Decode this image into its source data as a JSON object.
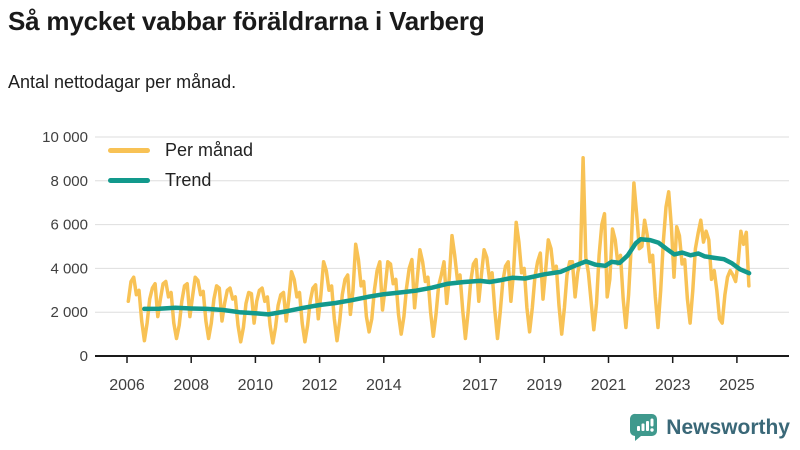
{
  "header": {
    "title": "Så mycket vabbar föräldrarna i Varberg",
    "subtitle": "Antal nettodagar per månad."
  },
  "footer": {
    "brand": "Newsworthy",
    "brand_text_color": "#3a6878",
    "brand_icon_color": "#3f998d"
  },
  "colors": {
    "per_month_line": "#f8c255",
    "trend_line": "#12998c",
    "grid": "#dedede",
    "axis": "#1a1a1a"
  },
  "chart_data": {
    "type": "line",
    "title": "Så mycket vabbar föräldrarna i Varberg",
    "ylabel": "Antal nettodagar per månad",
    "ylim": [
      0,
      10000
    ],
    "yticks": [
      0,
      2000,
      4000,
      6000,
      8000,
      10000
    ],
    "ytick_labels": [
      "0",
      "2 000",
      "4 000",
      "6 000",
      "8 000",
      "10 000"
    ],
    "xticks": [
      2006,
      2008,
      2010,
      2012,
      2014,
      2017,
      2019,
      2021,
      2023,
      2025
    ],
    "xtick_labels": [
      "2006",
      "2008",
      "2010",
      "2012",
      "2014",
      "2017",
      "2019",
      "2021",
      "2023",
      "2025"
    ],
    "grid": "horizontal",
    "legend_position": "top-left",
    "series": [
      {
        "name": "Per månad",
        "color": "#f8c255",
        "start": "2006-01",
        "end": "2025-05",
        "monthly_values_by_year": {
          "2006": [
            2500,
            3400,
            3600,
            2800,
            3000,
            1600,
            700,
            1500,
            2600,
            3100,
            3300,
            1800
          ],
          "2007": [
            2600,
            3300,
            3400,
            2700,
            2900,
            1500,
            800,
            1400,
            2500,
            3200,
            3300,
            1800
          ],
          "2008": [
            2700,
            3600,
            3450,
            2800,
            2950,
            1600,
            800,
            1500,
            2600,
            3200,
            3100,
            1600
          ],
          "2009": [
            2400,
            3000,
            3100,
            2600,
            2700,
            1400,
            650,
            1300,
            2400,
            2900,
            2850,
            1500
          ],
          "2010": [
            2500,
            3000,
            3100,
            2500,
            2700,
            1400,
            600,
            1300,
            2300,
            2800,
            2900,
            1600
          ],
          "2011": [
            2600,
            3850,
            3500,
            2700,
            2900,
            1500,
            650,
            1400,
            2500,
            3100,
            3250,
            1700
          ],
          "2012": [
            2800,
            4300,
            3900,
            3000,
            3200,
            1700,
            700,
            1600,
            2800,
            3500,
            3700,
            1900
          ],
          "2013": [
            3000,
            5100,
            4400,
            3200,
            3400,
            1800,
            1100,
            1700,
            3000,
            3900,
            4300,
            2100
          ],
          "2014": [
            3100,
            4300,
            4200,
            3300,
            3500,
            1900,
            1000,
            1800,
            3100,
            4000,
            4400,
            2200
          ],
          "2015": [
            3500,
            4850,
            4300,
            3400,
            3600,
            2000,
            900,
            1900,
            3200,
            3700,
            4300,
            2400
          ],
          "2016": [
            3600,
            5500,
            4600,
            3500,
            3700,
            2100,
            800,
            2000,
            3400,
            4200,
            4400,
            2500
          ],
          "2017": [
            3700,
            4850,
            4500,
            3500,
            3800,
            2100,
            800,
            2000,
            3400,
            4100,
            4300,
            2500
          ],
          "2018": [
            3800,
            6100,
            5200,
            3800,
            4000,
            2200,
            1100,
            2200,
            3600,
            4300,
            4700,
            2600
          ],
          "2019": [
            3900,
            5300,
            4900,
            3800,
            4100,
            2300,
            1000,
            2200,
            3700,
            4300,
            4300,
            2700
          ],
          "2020": [
            3800,
            4400,
            9050,
            4500,
            3800,
            2500,
            1200,
            2400,
            4600,
            6000,
            6500,
            2700
          ],
          "2021": [
            3500,
            5800,
            5300,
            4200,
            4600,
            2600,
            1300,
            2800,
            5000,
            7900,
            6500,
            4900
          ],
          "2022": [
            5000,
            6200,
            5500,
            4300,
            4600,
            2700,
            1300,
            3000,
            5200,
            6800,
            7500,
            5900
          ],
          "2023": [
            3600,
            5900,
            5500,
            4200,
            4400,
            2600,
            1500,
            3000,
            4900,
            5600,
            6200,
            5200
          ],
          "2024": [
            5700,
            5300,
            3500,
            3900,
            3000,
            1700,
            1500,
            2800,
            3600,
            3900,
            3700,
            3400
          ],
          "2025": [
            4300,
            5700,
            5100,
            5650,
            3200
          ]
        }
      },
      {
        "name": "Trend",
        "color": "#12998c",
        "anchors": [
          [
            2006.54,
            2150
          ],
          [
            2007.0,
            2160
          ],
          [
            2007.5,
            2200
          ],
          [
            2008.0,
            2170
          ],
          [
            2008.5,
            2150
          ],
          [
            2009.0,
            2100
          ],
          [
            2009.5,
            2000
          ],
          [
            2010.0,
            1950
          ],
          [
            2010.4,
            1900
          ],
          [
            2011.0,
            2050
          ],
          [
            2011.5,
            2200
          ],
          [
            2012.0,
            2330
          ],
          [
            2012.5,
            2420
          ],
          [
            2013.0,
            2550
          ],
          [
            2013.5,
            2700
          ],
          [
            2014.0,
            2820
          ],
          [
            2014.5,
            2900
          ],
          [
            2015.0,
            2980
          ],
          [
            2015.5,
            3120
          ],
          [
            2016.0,
            3300
          ],
          [
            2016.5,
            3380
          ],
          [
            2017.0,
            3430
          ],
          [
            2017.3,
            3380
          ],
          [
            2017.6,
            3450
          ],
          [
            2018.0,
            3570
          ],
          [
            2018.4,
            3540
          ],
          [
            2019.0,
            3730
          ],
          [
            2019.5,
            3840
          ],
          [
            2020.0,
            4150
          ],
          [
            2020.3,
            4320
          ],
          [
            2020.6,
            4170
          ],
          [
            2020.9,
            4120
          ],
          [
            2021.1,
            4300
          ],
          [
            2021.35,
            4250
          ],
          [
            2021.6,
            4600
          ],
          [
            2021.85,
            5150
          ],
          [
            2022.0,
            5330
          ],
          [
            2022.3,
            5290
          ],
          [
            2022.55,
            5180
          ],
          [
            2022.8,
            4900
          ],
          [
            2023.05,
            4640
          ],
          [
            2023.3,
            4720
          ],
          [
            2023.55,
            4600
          ],
          [
            2023.8,
            4680
          ],
          [
            2024.0,
            4550
          ],
          [
            2024.3,
            4480
          ],
          [
            2024.6,
            4420
          ],
          [
            2024.85,
            4230
          ],
          [
            2025.1,
            3960
          ],
          [
            2025.38,
            3780
          ]
        ]
      }
    ]
  }
}
